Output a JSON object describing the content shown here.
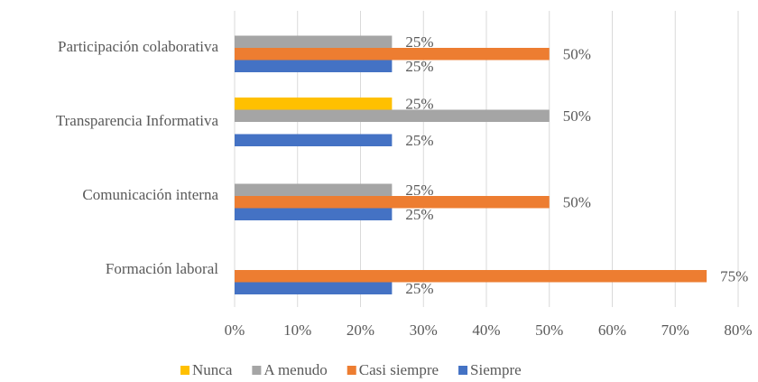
{
  "chart_data": {
    "type": "barh",
    "categories": [
      "Participación colaborativa",
      "Transparencia Informativa",
      "Comunicación interna",
      "Formación laboral"
    ],
    "series": [
      {
        "name": "Nunca",
        "color": "#ffc000",
        "values": [
          null,
          25,
          null,
          null
        ],
        "value_labels": [
          null,
          "25%",
          null,
          null
        ]
      },
      {
        "name": "A menudo",
        "color": "#a5a5a5",
        "values": [
          25,
          50,
          25,
          null
        ],
        "value_labels": [
          "25%",
          "50%",
          "25%",
          null
        ]
      },
      {
        "name": "Casi siempre",
        "color": "#ed7d31",
        "values": [
          50,
          null,
          50,
          75
        ],
        "value_labels": [
          "50%",
          null,
          "50%",
          "75%"
        ]
      },
      {
        "name": "Siempre",
        "color": "#4472c4",
        "values": [
          25,
          25,
          25,
          25
        ],
        "value_labels": [
          "25%",
          "25%",
          "25%",
          "25%"
        ]
      }
    ],
    "xlim": [
      0,
      80
    ],
    "xticks": [
      {
        "value": 0,
        "label": "0%"
      },
      {
        "value": 10,
        "label": "10%"
      },
      {
        "value": 20,
        "label": "20%"
      },
      {
        "value": 30,
        "label": "30%"
      },
      {
        "value": 40,
        "label": "40%"
      },
      {
        "value": 50,
        "label": "50%"
      },
      {
        "value": 60,
        "label": "60%"
      },
      {
        "value": 70,
        "label": "70%"
      },
      {
        "value": 80,
        "label": "80%"
      }
    ],
    "grid": true,
    "legend": "bottom"
  }
}
